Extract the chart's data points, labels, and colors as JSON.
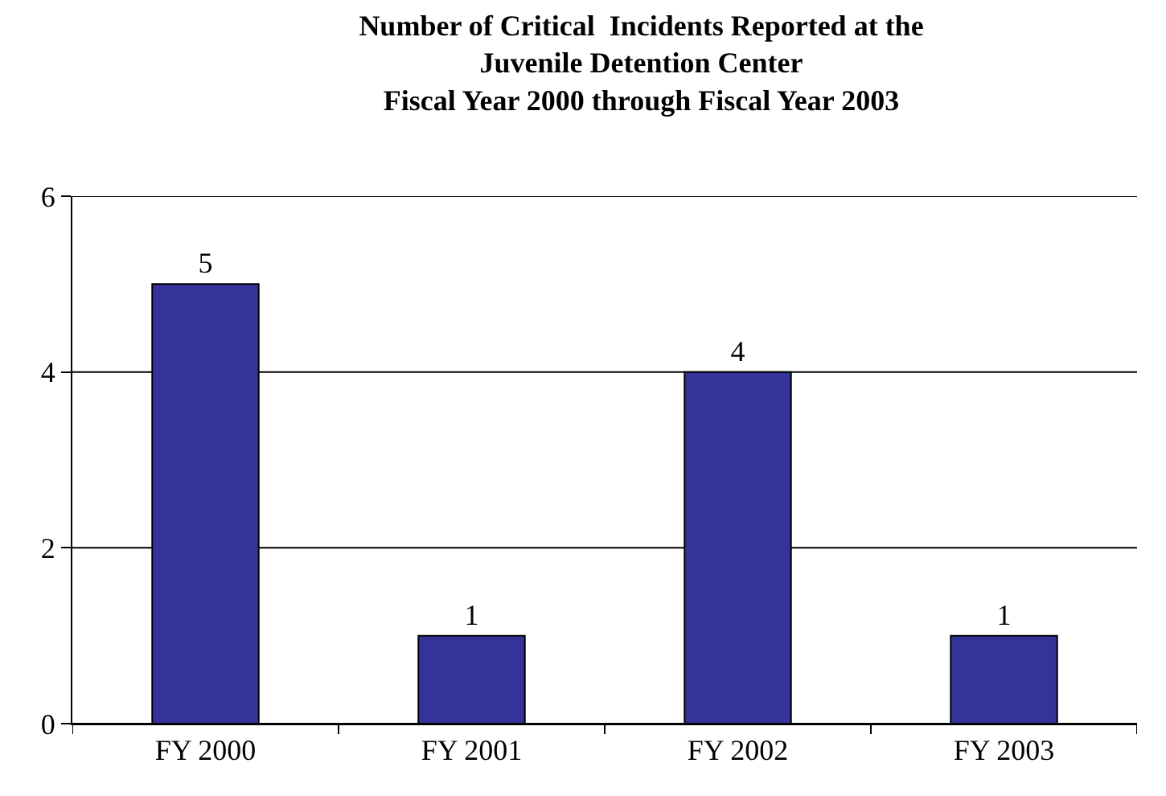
{
  "chart_data": {
    "type": "bar",
    "title": "Number of Critical  Incidents Reported at the\nJuvenile Detention Center\nFiscal Year 2000 through Fiscal Year 2003",
    "categories": [
      "FY 2000",
      "FY 2001",
      "FY 2002",
      "FY 2003"
    ],
    "values": [
      5,
      1,
      4,
      1
    ],
    "color": "#333399",
    "ylim": [
      0,
      6
    ],
    "yticks": [
      0,
      2,
      4,
      6
    ],
    "grid": "y",
    "data_labels": true
  }
}
